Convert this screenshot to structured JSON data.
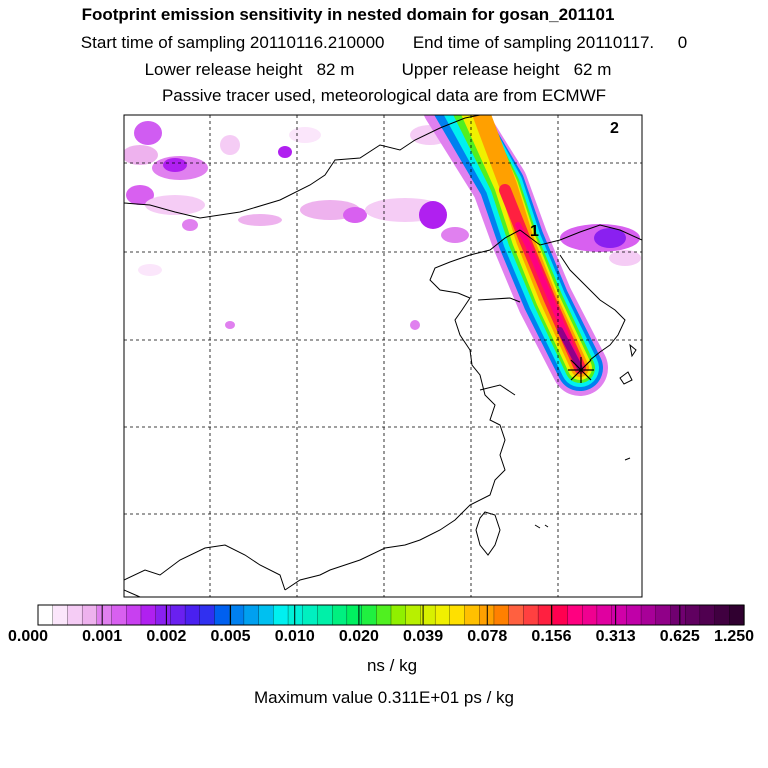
{
  "header": {
    "title": "Footprint emission sensitivity in nested domain for gosan_201101",
    "sampling_line": "Start time of sampling 20110116.210000      End time of sampling 20110117.     0",
    "release_line": "Lower release height   82 m          Upper release height   62 m",
    "tracer_line": "Passive tracer used, meteorological data are from ECMWF"
  },
  "map": {
    "labels": [
      "1",
      "2"
    ],
    "receptor": "gosan"
  },
  "colorbar": {
    "tick_labels": [
      "0.000",
      "0.001",
      "0.002",
      "0.005",
      "0.010",
      "0.020",
      "0.039",
      "0.078",
      "0.156",
      "0.313",
      "0.625",
      "1.250"
    ],
    "colors": [
      "#ffffff",
      "#fbe6fb",
      "#f5ccf5",
      "#eeb2ee",
      "#e080ef",
      "#d860f0",
      "#c840f0",
      "#b020f0",
      "#8a20f0",
      "#6a20f0",
      "#4a20f0",
      "#3030f0",
      "#0060f0",
      "#0080f0",
      "#00a0f0",
      "#00c0f0",
      "#00f0f0",
      "#00f0d8",
      "#00f0c0",
      "#00f0a8",
      "#00f080",
      "#00f060",
      "#20f040",
      "#50f020",
      "#90f000",
      "#b8f000",
      "#d8f000",
      "#f0f000",
      "#ffe000",
      "#ffc000",
      "#ffa000",
      "#ff8000",
      "#ff6040",
      "#ff4040",
      "#ff2040",
      "#ff0050",
      "#ff0080",
      "#f00090",
      "#e000a0",
      "#d000a8",
      "#c000a8",
      "#a80098",
      "#900088",
      "#700070",
      "#600060",
      "#500050",
      "#400040",
      "#300030"
    ],
    "units": "ns / kg",
    "max_value": "Maximum value  0.311E+01 ps / kg"
  }
}
